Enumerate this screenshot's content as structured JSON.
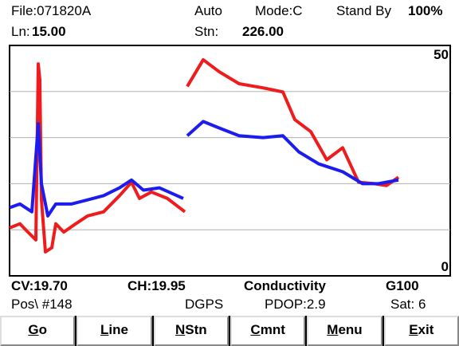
{
  "header": {
    "file": "File:071820A",
    "mode_auto": "Auto",
    "mode": "Mode:C",
    "status": "Stand By",
    "battery": "100%",
    "line_label": "Ln:",
    "line_value": "15.00",
    "station_label": "Stn:",
    "station_value": "226.00"
  },
  "chart_data": {
    "type": "line",
    "xlim": [
      0,
      553
    ],
    "ylim": [
      0,
      50
    ],
    "yticks": [
      0,
      50
    ],
    "grid_lines": [
      10,
      20,
      30,
      40
    ],
    "series": [
      {
        "color": "#ee1c1c",
        "x": [
          0,
          13,
          23,
          33,
          36,
          38,
          40,
          45,
          53,
          58,
          68,
          83,
          98,
          118,
          138,
          153,
          163,
          178,
          198,
          220,
          null,
          223,
          243,
          263,
          288,
          318,
          343,
          358,
          378,
          398,
          418,
          438,
          458,
          473,
          488
        ],
        "values": [
          10.4,
          11.3,
          9.5,
          7.8,
          46,
          42.5,
          16.5,
          5.2,
          6.1,
          11.3,
          9.5,
          11.3,
          13,
          13.9,
          17.4,
          20.3,
          16.8,
          18.2,
          16.8,
          13.9,
          null,
          41.1,
          46.9,
          44.3,
          41.7,
          40.8,
          39.9,
          33.9,
          31.3,
          25.2,
          27.8,
          20.3,
          20,
          19.6,
          21.4
        ]
      },
      {
        "color": "#1c1cee",
        "x": [
          0,
          13,
          28,
          36,
          40,
          48,
          58,
          78,
          98,
          118,
          138,
          153,
          168,
          188,
          218,
          null,
          223,
          243,
          263,
          288,
          318,
          343,
          363,
          388,
          418,
          443,
          463,
          488
        ],
        "values": [
          14.8,
          15.6,
          13.9,
          33,
          20,
          13,
          15.6,
          15.6,
          16.5,
          17.4,
          19.1,
          20.8,
          18.6,
          19.1,
          16.8,
          null,
          30.4,
          33.5,
          32.1,
          30.4,
          30,
          30.4,
          26.9,
          24.3,
          22.6,
          20,
          20,
          20.8
        ]
      }
    ]
  },
  "footer": {
    "cv": "CV:19.70",
    "ch": "CH:19.95",
    "measure": "Conductivity",
    "gain": "G100",
    "pos": "Pos\\ #148",
    "gps": "DGPS",
    "pdop": "PDOP:2.9",
    "sat": "Sat: 6"
  },
  "buttons": [
    "Go",
    "Line",
    "NStn",
    "Cmnt",
    "Menu",
    "Exit"
  ]
}
